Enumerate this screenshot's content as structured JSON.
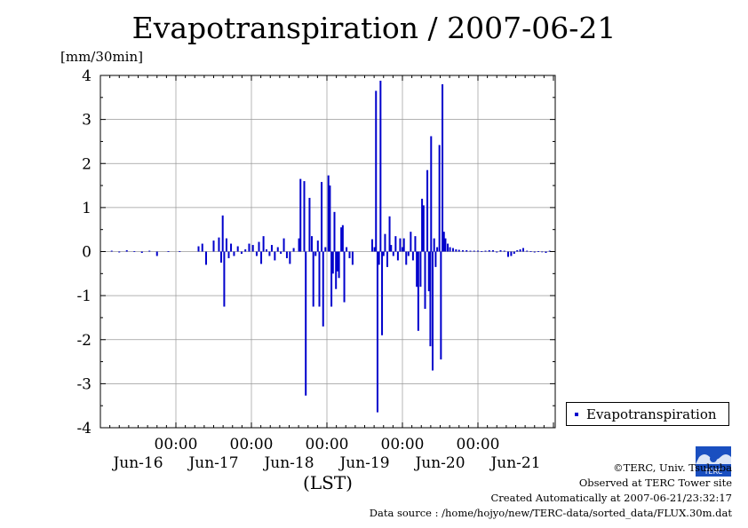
{
  "chart_data": {
    "type": "bar",
    "title": "Evapotranspiration / 2007-06-21",
    "ylabel": "[mm/30min]",
    "xlabel": "(LST)",
    "ylim": [
      -4,
      4
    ],
    "yticks": [
      "4",
      "3",
      "2",
      "1",
      "0",
      "-1",
      "-2",
      "-3",
      "-4"
    ],
    "time_labels": [
      "00:00",
      "00:00",
      "00:00",
      "00:00",
      "00:00"
    ],
    "day_labels": [
      "Jun-16",
      "Jun-17",
      "Jun-18",
      "Jun-19",
      "Jun-20",
      "Jun-21"
    ],
    "grid": true,
    "legend_position": "bottom-right",
    "series": [
      {
        "name": "Evapotranspiration",
        "color": "#0000cc",
        "points": [
          [
            0.05,
            0.01
          ],
          [
            0.15,
            0.02
          ],
          [
            0.25,
            -0.02
          ],
          [
            0.35,
            0.03
          ],
          [
            0.45,
            0.01
          ],
          [
            0.55,
            -0.03
          ],
          [
            0.65,
            0.02
          ],
          [
            0.75,
            -0.1
          ],
          [
            0.9,
            0.01
          ],
          [
            1.05,
            0.01
          ],
          [
            1.3,
            0.12
          ],
          [
            1.35,
            0.18
          ],
          [
            1.4,
            -0.3
          ],
          [
            1.5,
            0.25
          ],
          [
            1.57,
            0.32
          ],
          [
            1.6,
            -0.25
          ],
          [
            1.62,
            0.82
          ],
          [
            1.64,
            -1.25
          ],
          [
            1.67,
            0.3
          ],
          [
            1.7,
            -0.15
          ],
          [
            1.73,
            0.18
          ],
          [
            1.77,
            -0.1
          ],
          [
            1.82,
            0.12
          ],
          [
            1.87,
            -0.05
          ],
          [
            1.92,
            0.05
          ],
          [
            1.97,
            0.18
          ],
          [
            2.02,
            0.15
          ],
          [
            2.07,
            -0.1
          ],
          [
            2.1,
            0.22
          ],
          [
            2.13,
            -0.28
          ],
          [
            2.16,
            0.35
          ],
          [
            2.2,
            0.05
          ],
          [
            2.24,
            -0.1
          ],
          [
            2.27,
            0.15
          ],
          [
            2.31,
            -0.2
          ],
          [
            2.35,
            0.1
          ],
          [
            2.39,
            -0.05
          ],
          [
            2.43,
            0.3
          ],
          [
            2.47,
            -0.15
          ],
          [
            2.51,
            -0.28
          ],
          [
            2.56,
            0.08
          ],
          [
            2.63,
            0.3
          ],
          [
            2.65,
            1.65
          ],
          [
            2.7,
            1.6
          ],
          [
            2.72,
            -3.27
          ],
          [
            2.77,
            1.22
          ],
          [
            2.8,
            0.35
          ],
          [
            2.82,
            -1.25
          ],
          [
            2.85,
            -0.1
          ],
          [
            2.88,
            0.25
          ],
          [
            2.9,
            -1.25
          ],
          [
            2.93,
            1.58
          ],
          [
            2.95,
            -1.7
          ],
          [
            2.98,
            0.1
          ],
          [
            3.02,
            1.73
          ],
          [
            3.04,
            1.5
          ],
          [
            3.06,
            -1.25
          ],
          [
            3.08,
            -0.5
          ],
          [
            3.1,
            0.9
          ],
          [
            3.12,
            -0.85
          ],
          [
            3.14,
            -0.45
          ],
          [
            3.16,
            -0.6
          ],
          [
            3.19,
            0.55
          ],
          [
            3.21,
            0.6
          ],
          [
            3.23,
            -1.15
          ],
          [
            3.26,
            0.1
          ],
          [
            3.3,
            -0.15
          ],
          [
            3.34,
            -0.3
          ],
          [
            3.6,
            0.28
          ],
          [
            3.63,
            0.1
          ],
          [
            3.65,
            3.65
          ],
          [
            3.67,
            -3.65
          ],
          [
            3.69,
            -0.3
          ],
          [
            3.71,
            3.88
          ],
          [
            3.73,
            -1.9
          ],
          [
            3.75,
            -0.1
          ],
          [
            3.77,
            0.4
          ],
          [
            3.8,
            -0.35
          ],
          [
            3.83,
            0.8
          ],
          [
            3.85,
            0.15
          ],
          [
            3.88,
            -0.1
          ],
          [
            3.91,
            0.35
          ],
          [
            3.94,
            -0.2
          ],
          [
            3.97,
            0.3
          ],
          [
            4.0,
            0.1
          ],
          [
            4.02,
            0.3
          ],
          [
            4.05,
            -0.3
          ],
          [
            4.08,
            -0.1
          ],
          [
            4.11,
            0.45
          ],
          [
            4.14,
            -0.2
          ],
          [
            4.17,
            0.35
          ],
          [
            4.19,
            -0.8
          ],
          [
            4.21,
            -1.8
          ],
          [
            4.24,
            -0.8
          ],
          [
            4.26,
            1.2
          ],
          [
            4.28,
            1.05
          ],
          [
            4.3,
            -1.3
          ],
          [
            4.33,
            1.85
          ],
          [
            4.35,
            -0.9
          ],
          [
            4.37,
            -2.15
          ],
          [
            4.38,
            2.62
          ],
          [
            4.4,
            -2.7
          ],
          [
            4.42,
            0.3
          ],
          [
            4.44,
            -0.35
          ],
          [
            4.46,
            0.1
          ],
          [
            4.49,
            2.42
          ],
          [
            4.51,
            -2.45
          ],
          [
            4.53,
            3.8
          ],
          [
            4.55,
            0.45
          ],
          [
            4.57,
            0.3
          ],
          [
            4.6,
            0.18
          ],
          [
            4.63,
            0.1
          ],
          [
            4.67,
            0.08
          ],
          [
            4.71,
            0.05
          ],
          [
            4.75,
            0.04
          ],
          [
            4.8,
            0.03
          ],
          [
            4.85,
            0.03
          ],
          [
            4.9,
            0.02
          ],
          [
            4.95,
            0.02
          ],
          [
            5.0,
            0.02
          ],
          [
            5.05,
            0.01
          ],
          [
            5.1,
            0.02
          ],
          [
            5.15,
            0.03
          ],
          [
            5.2,
            0.03
          ],
          [
            5.25,
            -0.02
          ],
          [
            5.3,
            0.03
          ],
          [
            5.35,
            0.02
          ],
          [
            5.4,
            -0.12
          ],
          [
            5.44,
            -0.1
          ],
          [
            5.48,
            -0.05
          ],
          [
            5.52,
            0.03
          ],
          [
            5.56,
            0.05
          ],
          [
            5.6,
            0.08
          ],
          [
            5.65,
            0.02
          ],
          [
            5.7,
            0.01
          ],
          [
            5.75,
            -0.02
          ],
          [
            5.8,
            0.01
          ],
          [
            5.85,
            0.0
          ],
          [
            5.9,
            -0.03
          ],
          [
            5.95,
            0.02
          ]
        ]
      }
    ]
  },
  "footer": {
    "copyright": "©TERC, Univ. Tsukuba",
    "site": "Observed at TERC Tower site",
    "created": "Created Automatically at 2007-06-21/23:32:17",
    "source": "Data source : /home/hojyo/new/TERC-data/sorted_data/FLUX.30m.dat",
    "logo_text": "TERC"
  }
}
